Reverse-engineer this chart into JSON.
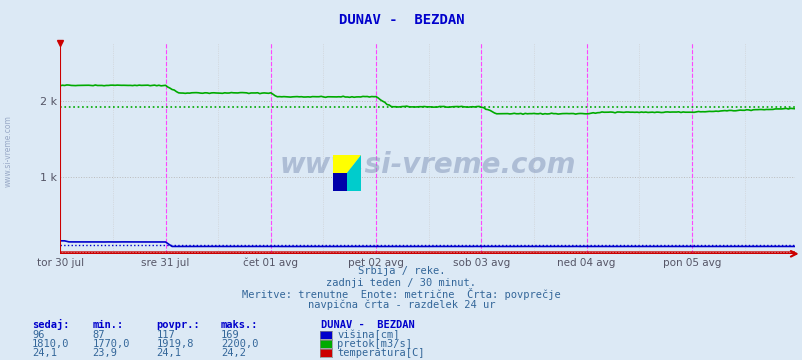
{
  "title": "DUNAV -  BEZDAN",
  "title_color": "#0000cc",
  "bg_color": "#dce9f5",
  "plot_bg_color": "#dce9f5",
  "grid_color_h": "#cccccc",
  "grid_color_v": "#cccccc",
  "x_tick_labels": [
    "tor 30 jul",
    "sre 31 jul",
    "čet 01 avg",
    "pet 02 avg",
    "sob 03 avg",
    "ned 04 avg",
    "pon 05 avg"
  ],
  "x_tick_positions": [
    0,
    48,
    96,
    144,
    192,
    240,
    288
  ],
  "num_points": 336,
  "ylim": [
    0,
    2750
  ],
  "ytick_vals": [
    0,
    1000,
    2000
  ],
  "ytick_labels": [
    "",
    "1 k",
    "2 k"
  ],
  "vline_color": "#ff44ff",
  "vline_positions": [
    48,
    96,
    144,
    192,
    240,
    288
  ],
  "watermark": "www.si-vreme.com",
  "subtitle_lines": [
    "Srbija / reke.",
    "zadnji teden / 30 minut.",
    "Meritve: trenutne  Enote: metrične  Črta: povprečje",
    "navpična črta - razdelek 24 ur"
  ],
  "legend_title": "DUNAV -  BEZDAN",
  "legend_items": [
    {
      "label": "višina[cm]",
      "color": "#0000cc"
    },
    {
      "label": "pretok[m3/s]",
      "color": "#00aa00"
    },
    {
      "label": "temperatura[C]",
      "color": "#cc0000"
    }
  ],
  "stats_headers": [
    "sedaj:",
    "min.:",
    "povpr.:",
    "maks.:"
  ],
  "stats_values": [
    [
      "96",
      "87",
      "117",
      "169"
    ],
    [
      "1810,0",
      "1770,0",
      "1919,8",
      "2200,0"
    ],
    [
      "24,1",
      "23,9",
      "24,1",
      "24,2"
    ]
  ],
  "visina_avg": 117,
  "pretok_avg": 1919.8,
  "temp_avg": 24.1,
  "visina_color": "#0000cc",
  "pretok_color": "#00aa00",
  "temp_color": "#cc0000"
}
